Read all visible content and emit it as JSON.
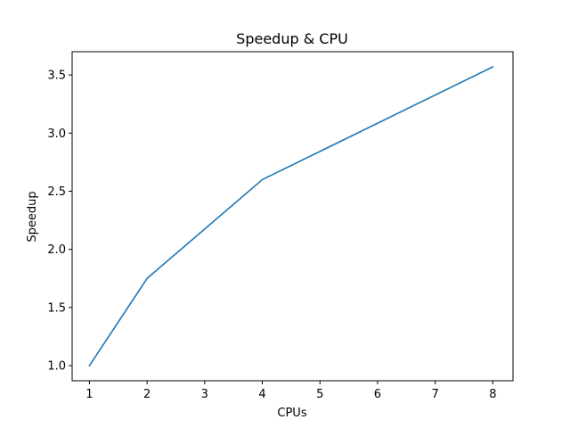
{
  "chart_data": {
    "type": "line",
    "title": "Speedup & CPU",
    "xlabel": "CPUs",
    "ylabel": "Speedup",
    "xlim": [
      0.7,
      8.35
    ],
    "ylim": [
      0.87,
      3.7
    ],
    "xticks": [
      1,
      2,
      3,
      4,
      5,
      6,
      7,
      8
    ],
    "xtick_labels": [
      "1",
      "2",
      "3",
      "4",
      "5",
      "6",
      "7",
      "8"
    ],
    "yticks": [
      1.0,
      1.5,
      2.0,
      2.5,
      3.0,
      3.5
    ],
    "ytick_labels": [
      "1.0",
      "1.5",
      "2.0",
      "2.5",
      "3.0",
      "3.5"
    ],
    "grid": false,
    "series": [
      {
        "color": "#1f77b4",
        "x": [
          1,
          2,
          4,
          8
        ],
        "y": [
          1.0,
          1.75,
          2.6,
          3.57
        ]
      }
    ]
  }
}
